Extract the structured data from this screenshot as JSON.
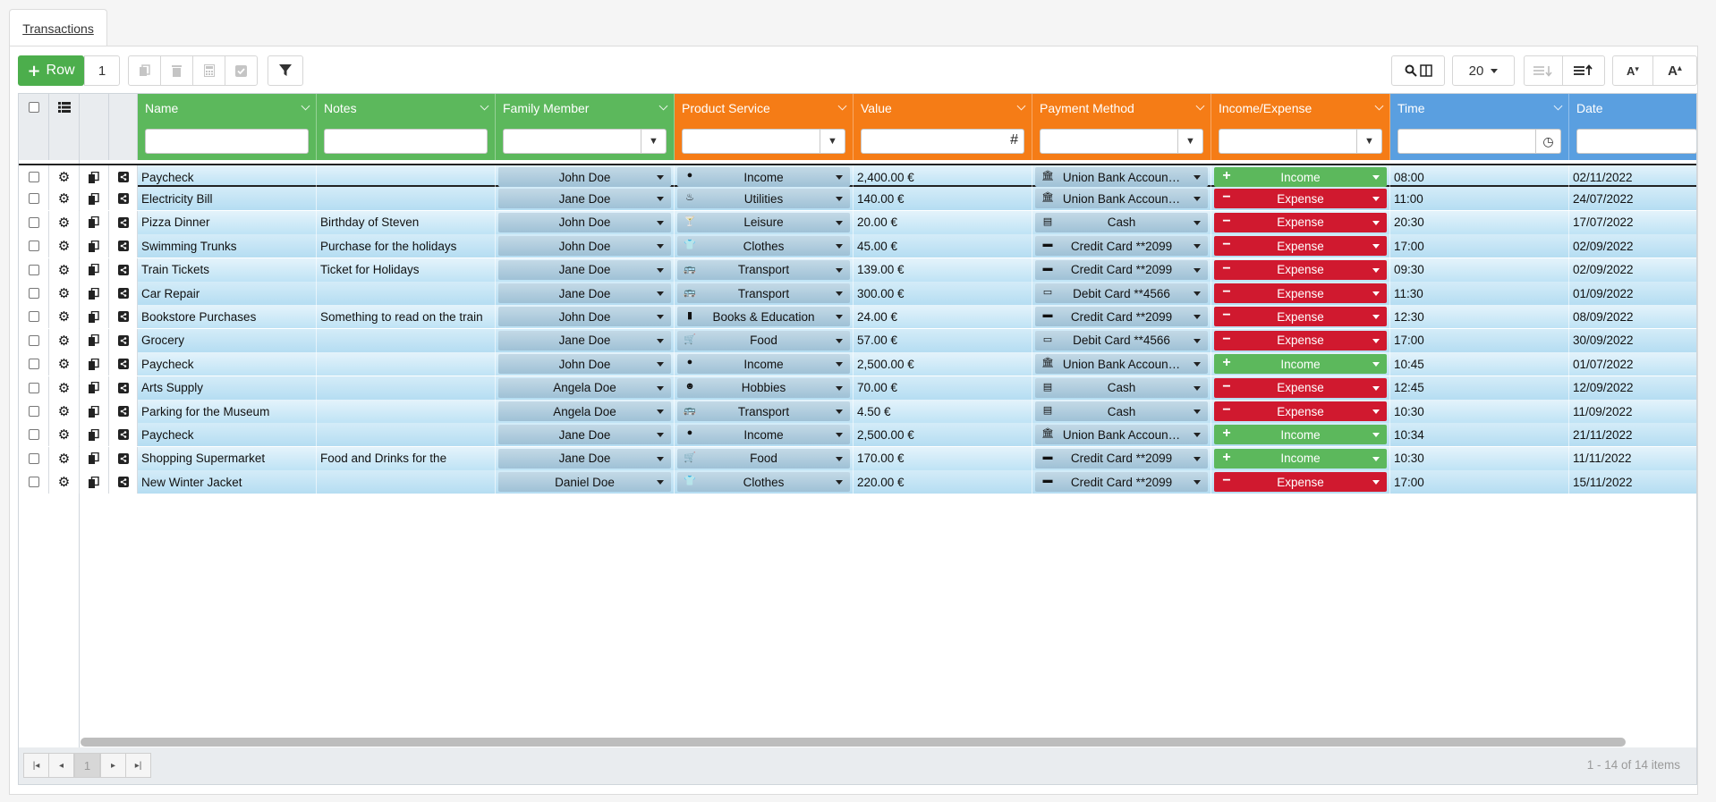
{
  "tab": {
    "label": "Transactions"
  },
  "toolbar": {
    "add_row_label": "Row",
    "row_count": "1",
    "page_size": "20"
  },
  "columns": [
    {
      "label": "Name",
      "group": "green"
    },
    {
      "label": "Notes",
      "group": "green"
    },
    {
      "label": "Family Member",
      "group": "green"
    },
    {
      "label": "Product Service",
      "group": "orange"
    },
    {
      "label": "Value",
      "group": "orange"
    },
    {
      "label": "Payment Method",
      "group": "orange"
    },
    {
      "label": "Income/Expense",
      "group": "orange"
    },
    {
      "label": "Time",
      "group": "blue"
    },
    {
      "label": "Date",
      "group": "blue"
    }
  ],
  "colors": {
    "green": "#5cb85c",
    "orange": "#f57c16",
    "blue": "#5a9fe0",
    "expense": "#d0192f",
    "income": "#5cb85c"
  },
  "rows": [
    {
      "name": "Paycheck",
      "notes": "",
      "member": "John Doe",
      "product": "Income",
      "product_icon": "dollar-circle-icon",
      "value": "2,400.00 €",
      "payment": "Union Bank Accoun…",
      "payment_icon": "bank-icon",
      "type": "Income",
      "time": "08:00",
      "date": "02/11/2022"
    },
    {
      "name": "Electricity Bill",
      "notes": "",
      "member": "Jane Doe",
      "product": "Utilities",
      "product_icon": "flame-icon",
      "value": "140.00 €",
      "payment": "Union Bank Accoun…",
      "payment_icon": "bank-icon",
      "type": "Expense",
      "time": "11:00",
      "date": "24/07/2022"
    },
    {
      "name": "Pizza Dinner",
      "notes": "Birthday of Steven",
      "member": "John Doe",
      "product": "Leisure",
      "product_icon": "cocktail-icon",
      "value": "20.00 €",
      "payment": "Cash",
      "payment_icon": "cash-icon",
      "type": "Expense",
      "time": "20:30",
      "date": "17/07/2022"
    },
    {
      "name": "Swimming Trunks",
      "notes": "Purchase for the holidays",
      "member": "John Doe",
      "product": "Clothes",
      "product_icon": "tshirt-icon",
      "value": "45.00 €",
      "payment": "Credit Card **2099",
      "payment_icon": "credit-card-icon",
      "type": "Expense",
      "time": "17:00",
      "date": "02/09/2022"
    },
    {
      "name": "Train Tickets",
      "notes": "Ticket for Holidays",
      "member": "Jane Doe",
      "product": "Transport",
      "product_icon": "bus-icon",
      "value": "139.00 €",
      "payment": "Credit Card **2099",
      "payment_icon": "credit-card-icon",
      "type": "Expense",
      "time": "09:30",
      "date": "02/09/2022"
    },
    {
      "name": "Car Repair",
      "notes": "",
      "member": "Jane Doe",
      "product": "Transport",
      "product_icon": "bus-icon",
      "value": "300.00 €",
      "payment": "Debit Card **4566",
      "payment_icon": "debit-card-icon",
      "type": "Expense",
      "time": "11:30",
      "date": "01/09/2022"
    },
    {
      "name": "Bookstore Purchases",
      "notes": "Something to read on the train",
      "member": "John Doe",
      "product": "Books & Education",
      "product_icon": "book-icon",
      "value": "24.00 €",
      "payment": "Credit Card **2099",
      "payment_icon": "credit-card-icon",
      "type": "Expense",
      "time": "12:30",
      "date": "08/09/2022"
    },
    {
      "name": "Grocery",
      "notes": "",
      "member": "Jane Doe",
      "product": "Food",
      "product_icon": "cart-icon",
      "value": "57.00 €",
      "payment": "Debit Card **4566",
      "payment_icon": "debit-card-icon",
      "type": "Expense",
      "time": "17:00",
      "date": "30/09/2022"
    },
    {
      "name": "Paycheck",
      "notes": "",
      "member": "John Doe",
      "product": "Income",
      "product_icon": "dollar-circle-icon",
      "value": "2,500.00 €",
      "payment": "Union Bank Accoun…",
      "payment_icon": "bank-icon",
      "type": "Income",
      "time": "10:45",
      "date": "01/07/2022"
    },
    {
      "name": "Arts Supply",
      "notes": "",
      "member": "Angela Doe",
      "product": "Hobbies",
      "product_icon": "smile-icon",
      "value": "70.00 €",
      "payment": "Cash",
      "payment_icon": "cash-icon",
      "type": "Expense",
      "time": "12:45",
      "date": "12/09/2022"
    },
    {
      "name": "Parking for the Museum",
      "notes": "",
      "member": "Angela Doe",
      "product": "Transport",
      "product_icon": "bus-icon",
      "value": "4.50 €",
      "payment": "Cash",
      "payment_icon": "cash-icon",
      "type": "Expense",
      "time": "10:30",
      "date": "11/09/2022"
    },
    {
      "name": "Paycheck",
      "notes": "",
      "member": "Jane Doe",
      "product": "Income",
      "product_icon": "dollar-circle-icon",
      "value": "2,500.00 €",
      "payment": "Union Bank Accoun…",
      "payment_icon": "bank-icon",
      "type": "Income",
      "time": "10:34",
      "date": "21/11/2022"
    },
    {
      "name": "Shopping Supermarket",
      "notes": "Food and Drinks for the",
      "member": "Jane Doe",
      "product": "Food",
      "product_icon": "cart-icon",
      "value": "170.00 €",
      "payment": "Credit Card **2099",
      "payment_icon": "credit-card-icon",
      "type": "Income",
      "time": "10:30",
      "date": "11/11/2022"
    },
    {
      "name": "New Winter Jacket",
      "notes": "",
      "member": "Daniel Doe",
      "product": "Clothes",
      "product_icon": "tshirt-icon",
      "value": "220.00 €",
      "payment": "Credit Card **2099",
      "payment_icon": "credit-card-icon",
      "type": "Expense",
      "time": "17:00",
      "date": "15/11/2022"
    }
  ],
  "pager": {
    "current_page": "1",
    "info": "1 - 14 of 14 items"
  }
}
